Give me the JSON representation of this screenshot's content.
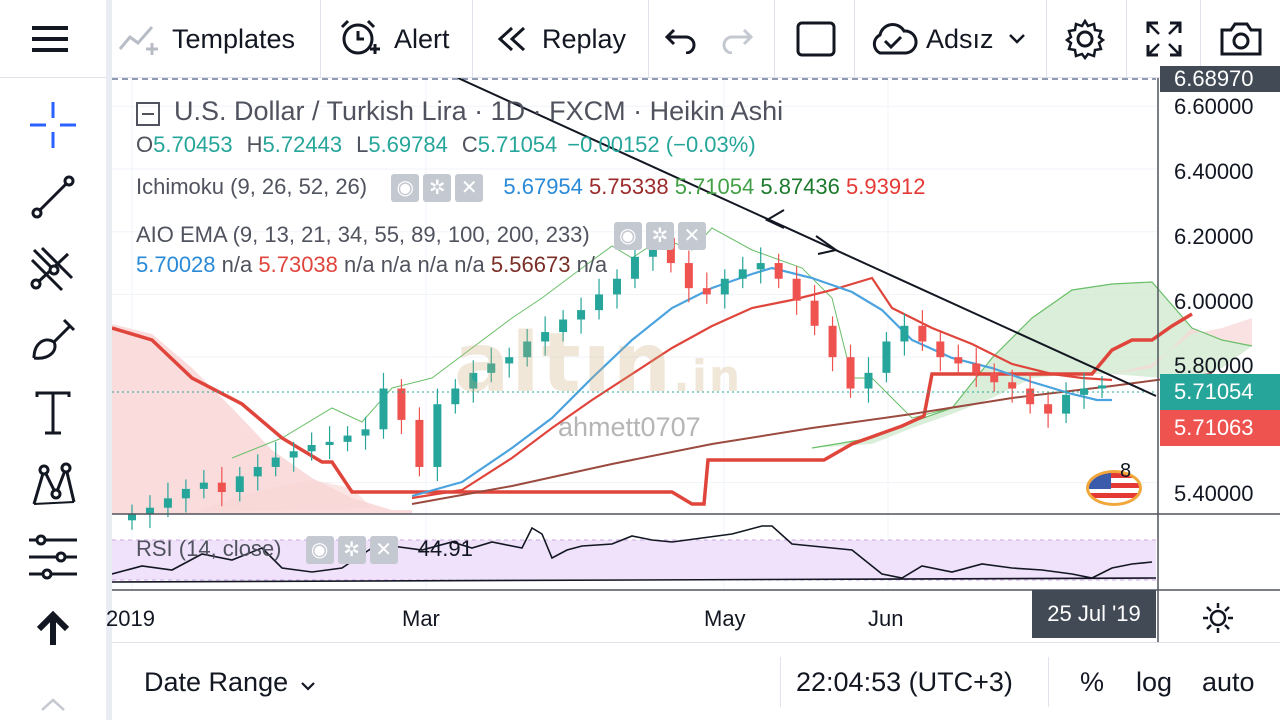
{
  "toolbar": {
    "templates_label": "Templates",
    "alert_label": "Alert",
    "replay_label": "Replay",
    "layout_label": "Adsız"
  },
  "legend": {
    "symbol_title": "U.S. Dollar / Turkish Lira · 1D · FXCM · Heikin Ashi",
    "ohlc": {
      "o_label": "O",
      "o": "5.70453",
      "h_label": "H",
      "h": "5.72443",
      "l_label": "L",
      "l": "5.69784",
      "c_label": "C",
      "c": "5.71054",
      "change": "−0.00152 (−0.03%)"
    },
    "ichimoku": {
      "name": "Ichimoku (9, 26, 52, 26)",
      "v1": "5.67954",
      "v2": "5.75338",
      "v3": "5.71054",
      "v4": "5.87436",
      "v5": "5.93912"
    },
    "aio_ema": {
      "name": "AIO EMA (9, 13, 21, 34, 55, 89, 100, 200, 233)",
      "v1": "5.70028",
      "v2": "n/a",
      "v3": "5.73038",
      "v4": "n/a",
      "v5": "n/a",
      "v6": "n/a",
      "v7": "n/a",
      "v8": "5.56673",
      "v9": "n/a"
    },
    "rsi": {
      "name": "RSI (14, close)",
      "value": "44.91"
    }
  },
  "watermark": {
    "brand": "altın",
    "suffix": ".in",
    "author": "ahmett0707"
  },
  "badge_count": "8",
  "price_axis": {
    "top_cut_label": "6.68970",
    "labels": [
      "6.60000",
      "6.40000",
      "6.20000",
      "6.00000",
      "5.80000",
      "5.40000"
    ],
    "last_price": "5.71054",
    "last_price_2": "5.71063"
  },
  "time_axis": {
    "labels": [
      "2019",
      "Mar",
      "May",
      "Jun"
    ],
    "cursor_date": "25 Jul '19"
  },
  "bottombar": {
    "date_range_label": "Date Range",
    "clock": "22:04:53 (UTC+3)",
    "percent_label": "%",
    "log_label": "log",
    "auto_label": "auto"
  },
  "colors": {
    "up": "#26a69a",
    "down": "#ef5350",
    "ema_blue": "#4aa3df",
    "ema_red": "#e0453c",
    "ema_brown": "#9b4a3f",
    "cloud_green": "#cde8cd",
    "cloud_red": "#f9d6d6",
    "rsi_band": "#efe2fa",
    "axis_label_bg": "#424a56"
  },
  "chart_data": {
    "type": "candlestick",
    "ylim": [
      5.3,
      6.69
    ],
    "y_ticks": [
      6.6,
      6.4,
      6.2,
      6.0,
      5.8,
      5.4
    ],
    "x_ticks": [
      "2019",
      "Mar",
      "May",
      "Jun"
    ],
    "last_price": 5.71054,
    "candles_close_approx": [
      5.3,
      5.32,
      5.35,
      5.38,
      5.4,
      5.37,
      5.42,
      5.45,
      5.48,
      5.5,
      5.52,
      5.53,
      5.55,
      5.57,
      5.7,
      5.6,
      5.45,
      5.65,
      5.7,
      5.75,
      5.78,
      5.8,
      5.85,
      5.88,
      5.92,
      5.95,
      6.0,
      6.05,
      6.12,
      6.18,
      6.1,
      6.02,
      6.0,
      6.05,
      6.08,
      6.1,
      6.05,
      5.98,
      5.9,
      5.8,
      5.7,
      5.75,
      5.85,
      5.9,
      5.85,
      5.8,
      5.78,
      5.75,
      5.72,
      5.7,
      5.65,
      5.62,
      5.68,
      5.7,
      5.71
    ],
    "rsi": {
      "period": 14,
      "value": 44.91,
      "band": [
        30,
        70
      ]
    },
    "trendline": {
      "from_price": 6.68,
      "to_price": 5.72
    }
  }
}
